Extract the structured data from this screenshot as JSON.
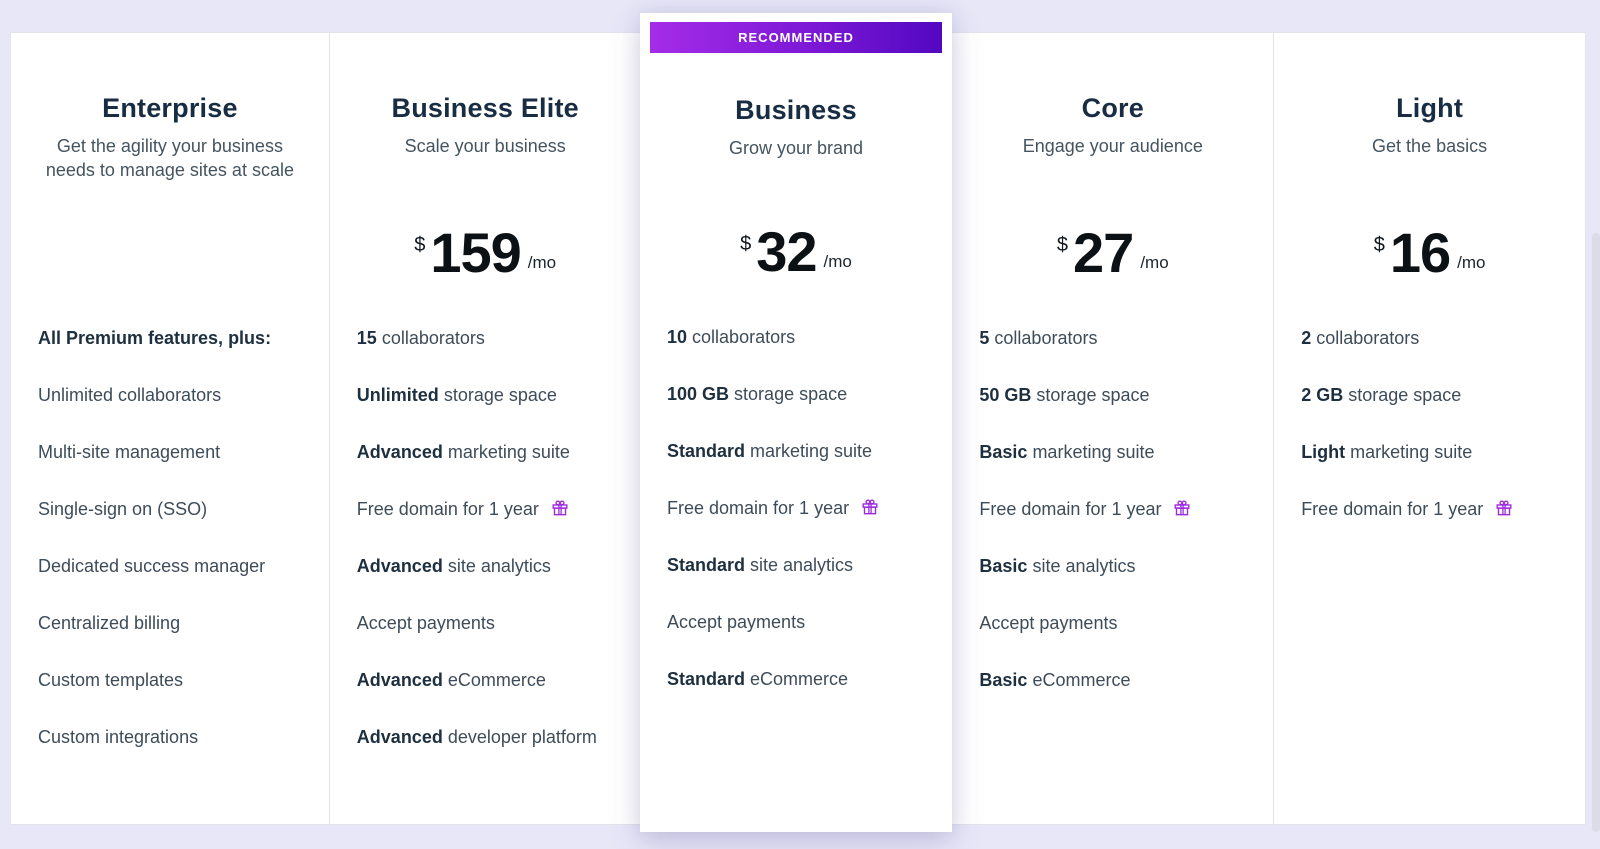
{
  "badge": {
    "label": "RECOMMENDED"
  },
  "currency": "$",
  "period": "/mo",
  "colors": {
    "page_background": "#e8e7f8",
    "card_background": "#ffffff",
    "badge_gradient_start": "#a52ce8",
    "badge_gradient_end": "#5208c0",
    "plan_name": "#182c43",
    "feature_text": "#3e4c59",
    "gift_icon": "#9c2bde"
  },
  "icons": {
    "gift": "gift-icon"
  },
  "plans": [
    {
      "name": "Enterprise",
      "tagline": "Get the agility your business needs to manage sites at scale",
      "price": null,
      "recommended": false,
      "features": [
        {
          "bold": "All Premium features, plus:",
          "text": ""
        },
        {
          "text": "Unlimited collaborators"
        },
        {
          "text": "Multi-site management"
        },
        {
          "text": "Single-sign on (SSO)"
        },
        {
          "text": "Dedicated success manager"
        },
        {
          "text": "Centralized billing"
        },
        {
          "text": "Custom templates"
        },
        {
          "text": "Custom integrations"
        }
      ]
    },
    {
      "name": "Business Elite",
      "tagline": "Scale your business",
      "price": "159",
      "recommended": false,
      "features": [
        {
          "bold": "15",
          "text": "collaborators"
        },
        {
          "bold": "Unlimited",
          "text": "storage space"
        },
        {
          "bold": "Advanced",
          "text": "marketing suite"
        },
        {
          "text": "Free domain for 1 year",
          "gift": true
        },
        {
          "bold": "Advanced",
          "text": "site analytics"
        },
        {
          "text": "Accept payments"
        },
        {
          "bold": "Advanced",
          "text": "eCommerce"
        },
        {
          "bold": "Advanced",
          "text": "developer platform"
        }
      ]
    },
    {
      "name": "Business",
      "tagline": "Grow your brand",
      "price": "32",
      "recommended": true,
      "features": [
        {
          "bold": "10",
          "text": "collaborators"
        },
        {
          "bold": "100 GB",
          "text": "storage space"
        },
        {
          "bold": "Standard",
          "text": "marketing suite"
        },
        {
          "text": "Free domain for 1 year",
          "gift": true
        },
        {
          "bold": "Standard",
          "text": "site analytics"
        },
        {
          "text": "Accept payments"
        },
        {
          "bold": "Standard",
          "text": "eCommerce"
        }
      ]
    },
    {
      "name": "Core",
      "tagline": "Engage your audience",
      "price": "27",
      "recommended": false,
      "features": [
        {
          "bold": "5",
          "text": "collaborators"
        },
        {
          "bold": "50 GB",
          "text": "storage space"
        },
        {
          "bold": "Basic",
          "text": "marketing suite"
        },
        {
          "text": "Free domain for 1 year",
          "gift": true
        },
        {
          "bold": "Basic",
          "text": "site analytics"
        },
        {
          "text": "Accept payments"
        },
        {
          "bold": "Basic",
          "text": "eCommerce"
        }
      ]
    },
    {
      "name": "Light",
      "tagline": "Get the basics",
      "price": "16",
      "recommended": false,
      "features": [
        {
          "bold": "2",
          "text": "collaborators"
        },
        {
          "bold": "2 GB",
          "text": "storage space"
        },
        {
          "bold": "Light",
          "text": "marketing suite"
        },
        {
          "text": "Free domain for 1 year",
          "gift": true
        }
      ]
    }
  ]
}
